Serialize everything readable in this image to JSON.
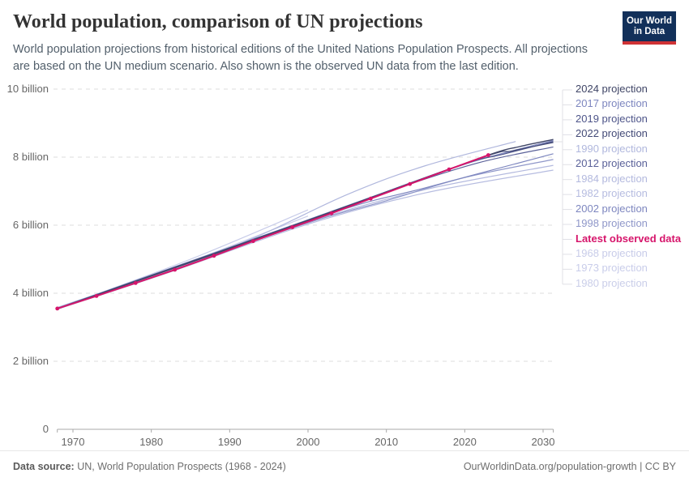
{
  "header": {
    "title": "World population, comparison of UN projections",
    "subtitle": "World population projections from historical editions of the United Nations Population Prospects. All projections are based on the UN medium scenario. Also shown is the observed UN data from the last edition.",
    "logo": {
      "line1": "Our World",
      "line2": "in Data"
    }
  },
  "footer": {
    "source_label": "Data source:",
    "source_text": " UN, World Population Prospects (1968 - 2024)",
    "right_text": "OurWorldinData.org/population-growth | CC BY"
  },
  "legend": {
    "items": [
      {
        "label": "2024 projection",
        "color": "#3f4566",
        "bold": false
      },
      {
        "label": "2017 projection",
        "color": "#7d86bf",
        "bold": false
      },
      {
        "label": "2019 projection",
        "color": "#4d5489",
        "bold": false
      },
      {
        "label": "2022 projection",
        "color": "#434a77",
        "bold": false
      },
      {
        "label": "1990 projection",
        "color": "#b0b7dd",
        "bold": false
      },
      {
        "label": "2012 projection",
        "color": "#5a6199",
        "bold": false
      },
      {
        "label": "1984 projection",
        "color": "#b3b9de",
        "bold": false
      },
      {
        "label": "1982 projection",
        "color": "#b6bce0",
        "bold": false
      },
      {
        "label": "2002 projection",
        "color": "#7d86bf",
        "bold": false
      },
      {
        "label": "1998 projection",
        "color": "#8f97c9",
        "bold": false
      },
      {
        "label": "Latest observed data",
        "color": "#d6156b",
        "bold": true
      },
      {
        "label": "1968 projection",
        "color": "#c8cce9",
        "bold": false
      },
      {
        "label": "1973 projection",
        "color": "#c9cdea",
        "bold": false
      },
      {
        "label": "1980 projection",
        "color": "#cacee9",
        "bold": false
      }
    ]
  },
  "chart_data": {
    "type": "line",
    "title": "World population, comparison of UN projections",
    "unit": "billion people",
    "xlabel": "",
    "ylabel": "",
    "x_range": [
      1968,
      2031.5
    ],
    "y_range": [
      0,
      10
    ],
    "x_ticks": [
      1970,
      1980,
      1990,
      2000,
      2010,
      2020,
      2030
    ],
    "y_ticks": [
      {
        "value": 0,
        "label": "0"
      },
      {
        "value": 2,
        "label": "2 billion"
      },
      {
        "value": 4,
        "label": "4 billion"
      },
      {
        "value": 6,
        "label": "6 billion"
      },
      {
        "value": 8,
        "label": "8 billion"
      },
      {
        "value": 10,
        "label": "10 billion"
      }
    ],
    "grid": "horizontal-dashed",
    "legend_position": "right",
    "series": [
      {
        "name": "1968 projection",
        "color": "#c8cce9",
        "width": 1.2,
        "markers": false,
        "points": [
          [
            1968,
            3.55
          ],
          [
            1985,
            5.0
          ],
          [
            2000,
            6.45
          ]
        ]
      },
      {
        "name": "1973 projection",
        "color": "#c9cdea",
        "width": 1.2,
        "markers": false,
        "points": [
          [
            1973,
            3.92
          ],
          [
            1985,
            4.93
          ],
          [
            2000,
            6.27
          ]
        ]
      },
      {
        "name": "1980 projection",
        "color": "#cacee9",
        "width": 1.2,
        "markers": false,
        "points": [
          [
            1980,
            4.45
          ],
          [
            1990,
            5.27
          ],
          [
            2000,
            6.12
          ]
        ]
      },
      {
        "name": "1982 projection",
        "color": "#b6bce0",
        "width": 1.2,
        "markers": false,
        "points": [
          [
            1968,
            3.53
          ],
          [
            1982,
            4.59
          ],
          [
            2000,
            6.03
          ],
          [
            2015,
            6.95
          ],
          [
            2031.3,
            7.62
          ]
        ]
      },
      {
        "name": "1984 projection",
        "color": "#b3b9de",
        "width": 1.2,
        "markers": false,
        "points": [
          [
            1968,
            3.56
          ],
          [
            1984,
            4.77
          ],
          [
            2000,
            6.09
          ],
          [
            2015,
            7.05
          ],
          [
            2031.3,
            7.76
          ]
        ]
      },
      {
        "name": "1990 projection",
        "color": "#b0b7dd",
        "width": 1.2,
        "markers": false,
        "points": [
          [
            1968,
            3.58
          ],
          [
            1990,
            5.33
          ],
          [
            2005,
            6.9
          ],
          [
            2015,
            7.75
          ],
          [
            2026.5,
            8.46
          ]
        ]
      },
      {
        "name": "1998 projection",
        "color": "#8f97c9",
        "width": 1.2,
        "markers": false,
        "points": [
          [
            1968,
            3.53
          ],
          [
            1998,
            5.92
          ],
          [
            2010,
            6.72
          ],
          [
            2020,
            7.4
          ],
          [
            2031.3,
            7.93
          ]
        ]
      },
      {
        "name": "2002 projection",
        "color": "#7d86bf",
        "width": 1.2,
        "markers": false,
        "points": [
          [
            1968,
            3.54
          ],
          [
            2002,
            6.28
          ],
          [
            2015,
            7.1
          ],
          [
            2031.3,
            8.1
          ]
        ]
      },
      {
        "name": "2012 projection",
        "color": "#5a6199",
        "width": 1.2,
        "markers": false,
        "points": [
          [
            1968,
            3.55
          ],
          [
            2000,
            6.13
          ],
          [
            2012,
            7.13
          ],
          [
            2022,
            7.85
          ],
          [
            2031.3,
            8.3
          ]
        ]
      },
      {
        "name": "2017 projection",
        "color": "#7d86bf",
        "width": 1.2,
        "markers": false,
        "points": [
          [
            1968,
            3.56
          ],
          [
            2000,
            6.16
          ],
          [
            2017,
            7.56
          ],
          [
            2024,
            8.06
          ],
          [
            2031.3,
            8.49
          ]
        ]
      },
      {
        "name": "2019 projection",
        "color": "#4d5489",
        "width": 1.2,
        "markers": false,
        "points": [
          [
            1968,
            3.55
          ],
          [
            2000,
            6.15
          ],
          [
            2019,
            7.73
          ],
          [
            2025,
            8.09
          ],
          [
            2031.3,
            8.46
          ]
        ]
      },
      {
        "name": "2022 projection",
        "color": "#434a77",
        "width": 1.2,
        "markers": false,
        "points": [
          [
            1968,
            3.54
          ],
          [
            2000,
            6.14
          ],
          [
            2022,
            7.97
          ],
          [
            2026,
            8.18
          ],
          [
            2031.3,
            8.43
          ]
        ]
      },
      {
        "name": "2024 projection",
        "color": "#3f4566",
        "width": 1.4,
        "markers": false,
        "points": [
          [
            1968,
            3.55
          ],
          [
            1990,
            5.31
          ],
          [
            2010,
            6.97
          ],
          [
            2023,
            8.06
          ],
          [
            2027,
            8.31
          ],
          [
            2031.3,
            8.52
          ]
        ]
      },
      {
        "name": "Latest observed data",
        "color": "#d6156b",
        "width": 2,
        "markers": true,
        "points": [
          [
            1968,
            3.55
          ],
          [
            1973,
            3.92
          ],
          [
            1978,
            4.3
          ],
          [
            1983,
            4.69
          ],
          [
            1988,
            5.1
          ],
          [
            1993,
            5.53
          ],
          [
            1998,
            5.94
          ],
          [
            2003,
            6.35
          ],
          [
            2008,
            6.78
          ],
          [
            2013,
            7.21
          ],
          [
            2018,
            7.64
          ],
          [
            2023,
            8.06
          ]
        ]
      }
    ]
  }
}
